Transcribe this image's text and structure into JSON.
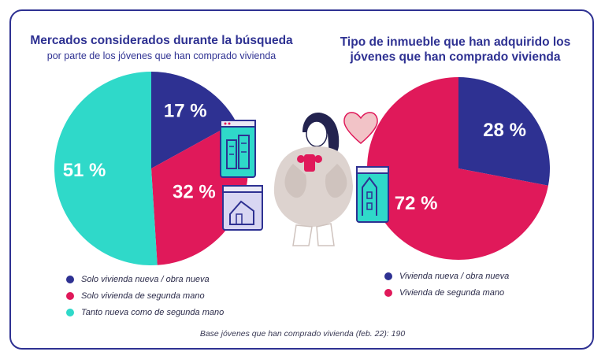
{
  "footnote": "Base jóvenes que han comprado vivienda (feb. 22): 190",
  "chart_data": [
    {
      "type": "pie",
      "title": "Mercados considerados durante la búsqueda",
      "subtitle": "por parte de los jóvenes que han comprado vivienda",
      "slices": [
        {
          "label": "Solo vivienda nueva / obra nueva",
          "value": 17,
          "display": "17 %",
          "color": "#2e3192"
        },
        {
          "label": "Solo vivienda de segunda mano",
          "value": 32,
          "display": "32 %",
          "color": "#e0195a"
        },
        {
          "label": "Tanto nueva como de segunda mano",
          "value": 51,
          "display": "51 %",
          "color": "#2fd9c9"
        }
      ]
    },
    {
      "type": "pie",
      "title": "Tipo de inmueble que han adquirido los jóvenes que han comprado vivienda",
      "title_lines": [
        "Tipo de inmueble que han adquirido los",
        "jóvenes que han comprado vivienda"
      ],
      "slices": [
        {
          "label": "Vivienda nueva / obra nueva",
          "value": 28,
          "display": "28 %",
          "color": "#2e3192"
        },
        {
          "label": "Vivienda de segunda mano",
          "value": 72,
          "display": "72 %",
          "color": "#e0195a"
        }
      ]
    }
  ]
}
